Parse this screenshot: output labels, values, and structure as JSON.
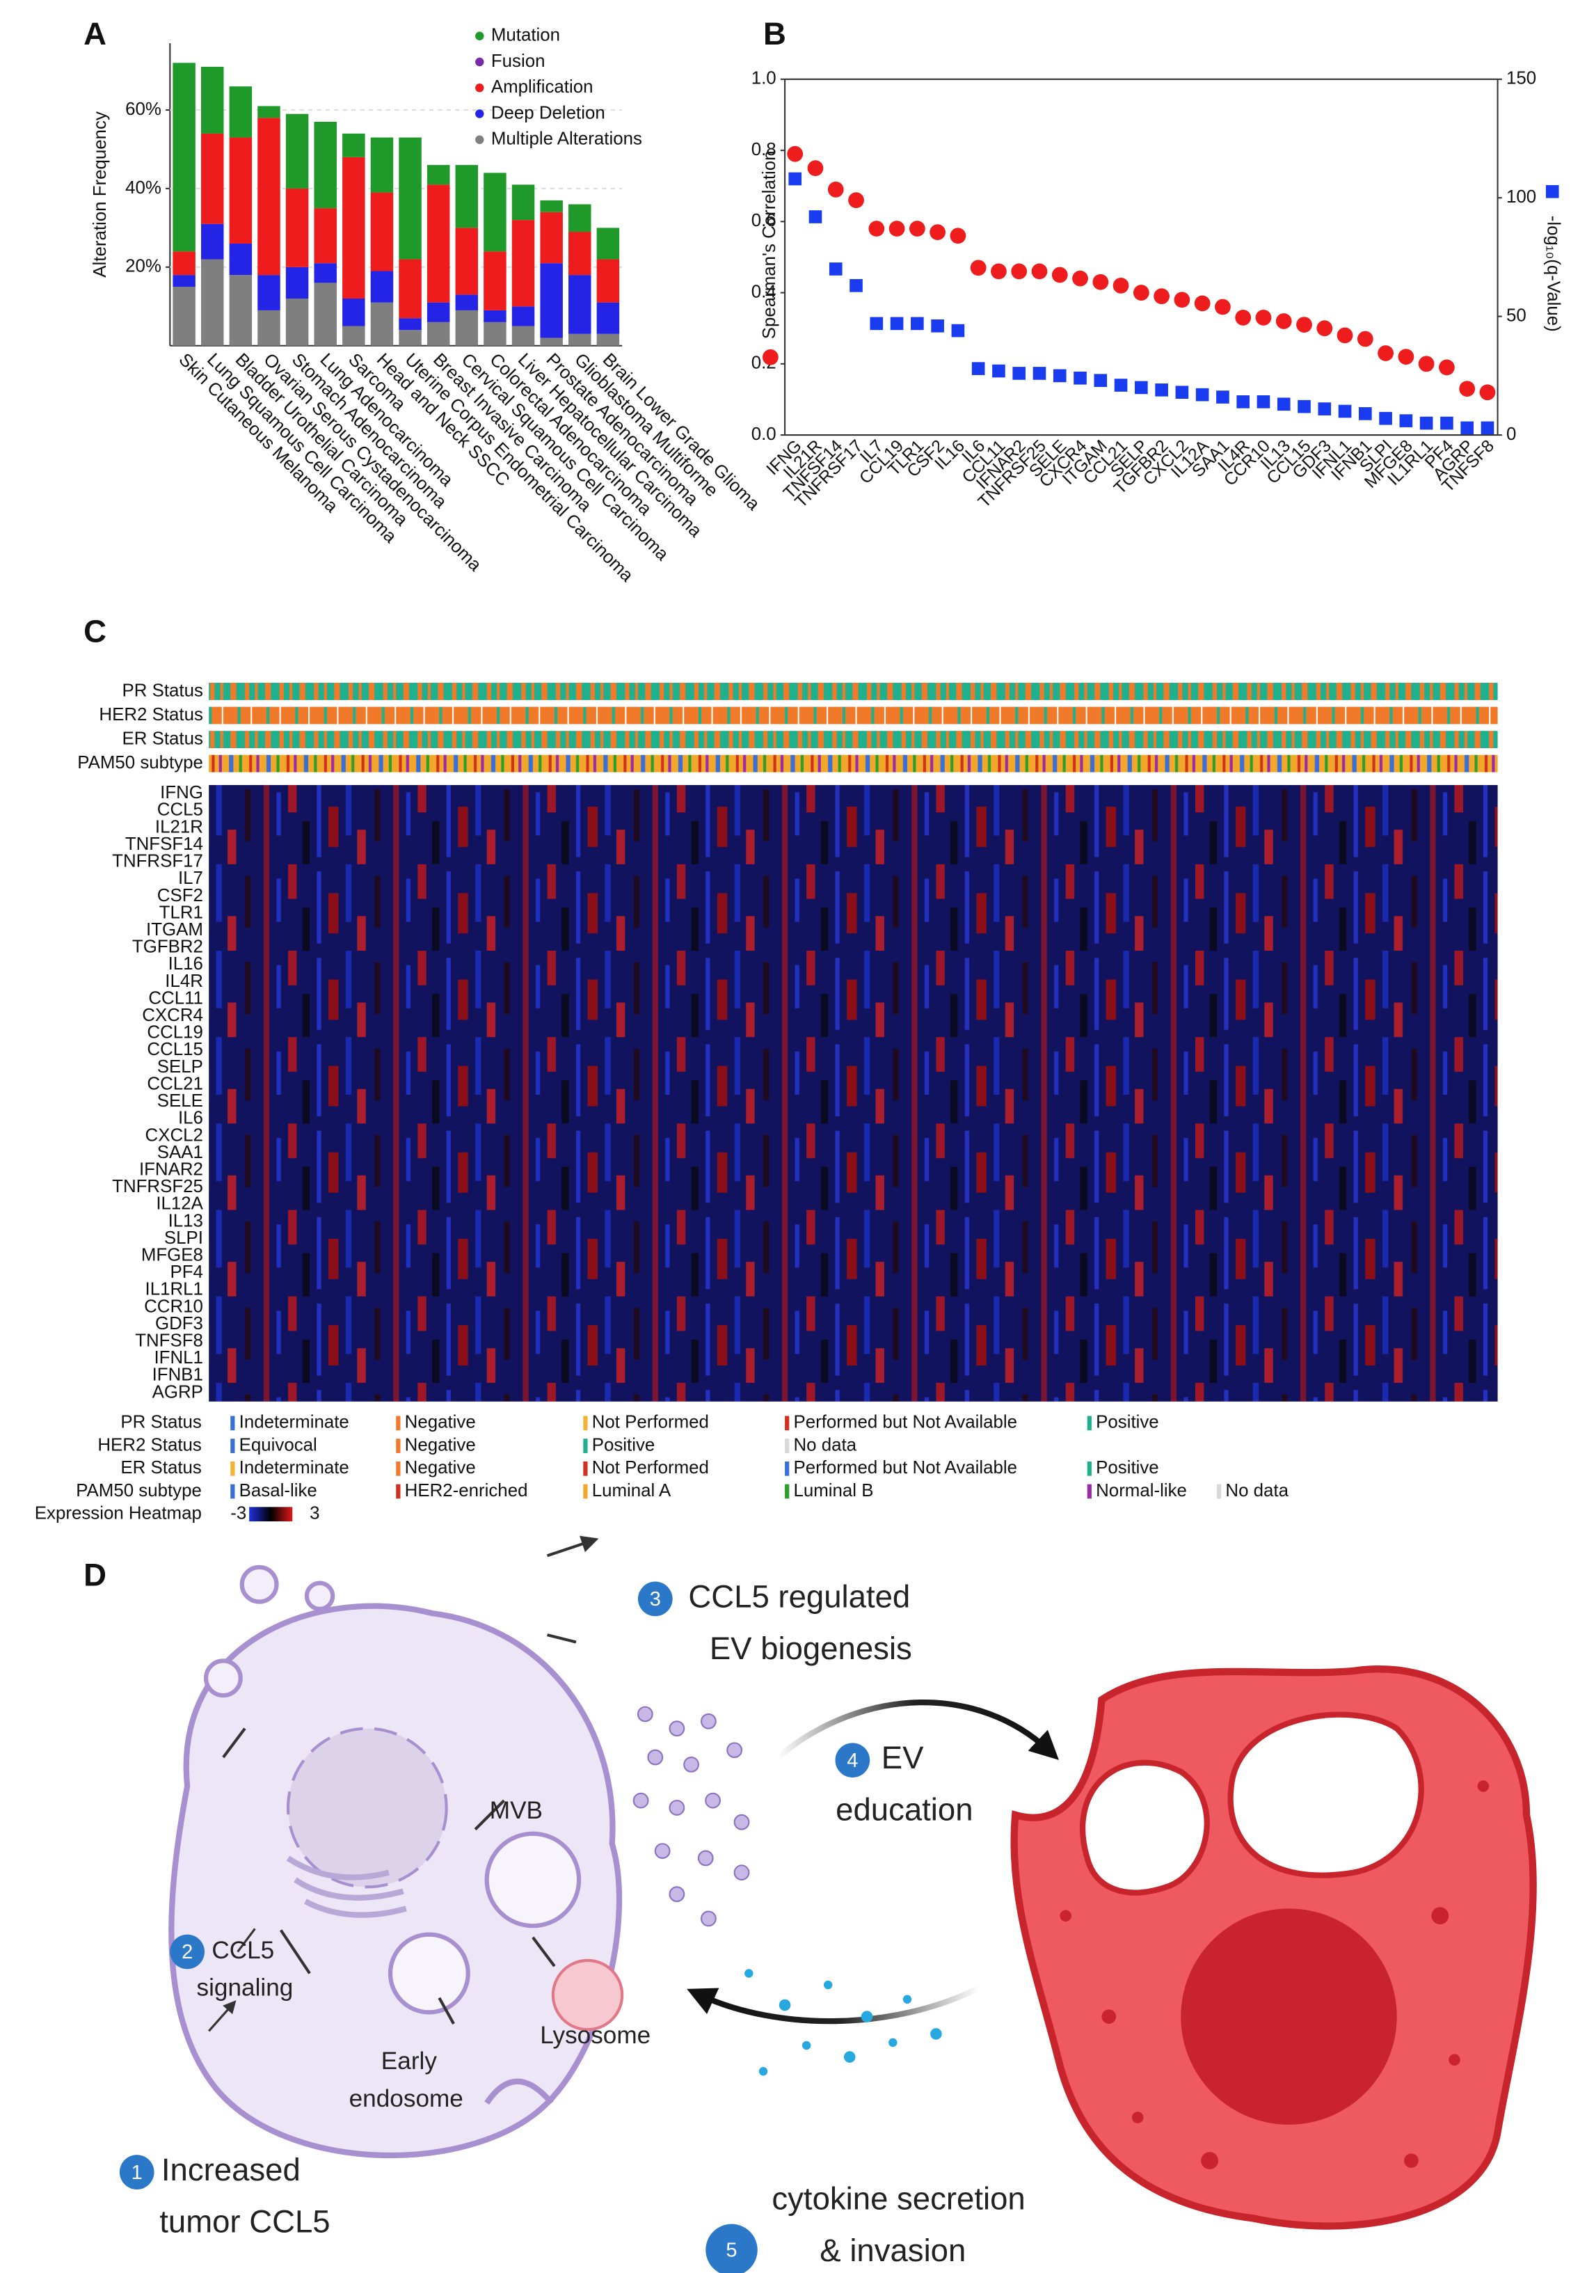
{
  "panel_labels": [
    "A",
    "B",
    "C",
    "D"
  ],
  "chart_data": [
    {
      "type": "stacked_bar",
      "y_label": "Alteration Frequency",
      "categories": [
        "Skin Cutaneous Melanoma",
        "Lung Squamous Cell Carcinoma",
        "Bladder Urothelial Carcinoma",
        "Ovarian Serous Cystadenocarcinoma",
        "Stomach Adenocarcinoma",
        "Lung Adenocarcinoma",
        "Sarcoma",
        "Head and Neck SSCC",
        "Uterine Corpus Endometrial Carcinoma",
        "Breast Invasive Carcinoma",
        "Cervical Squamous Cell Carcinoma",
        "Colorectal Adenocarcinoma",
        "Liver Hepatocellular Carcinoma",
        "Prostate Adenocarcinoma",
        "Glioblastoma Multiforme",
        "Brain Lower Grade Glioma"
      ],
      "series": [
        {
          "name": "Mutation",
          "color": "#1f9a2a",
          "values": [
            48,
            17,
            13,
            3,
            19,
            22,
            6,
            14,
            31,
            5,
            16,
            20,
            9,
            3,
            7,
            8
          ]
        },
        {
          "name": "Fusion",
          "color": "#7a2aa8",
          "values": [
            0,
            0,
            0,
            0,
            0,
            0,
            0,
            0,
            0,
            0,
            0,
            0,
            0,
            0,
            0,
            0
          ]
        },
        {
          "name": "Amplification",
          "color": "#ee1c1c",
          "values": [
            6,
            23,
            27,
            40,
            20,
            14,
            36,
            20,
            15,
            30,
            17,
            15,
            22,
            13,
            11,
            11
          ]
        },
        {
          "name": "Deep Deletion",
          "color": "#2424e6",
          "values": [
            3,
            9,
            8,
            9,
            8,
            5,
            7,
            8,
            3,
            5,
            4,
            3,
            5,
            19,
            15,
            8
          ]
        },
        {
          "name": "Multiple Alterations",
          "color": "#7f7f7f",
          "values": [
            15,
            22,
            18,
            9,
            12,
            16,
            5,
            11,
            4,
            6,
            9,
            6,
            5,
            2,
            3,
            3
          ]
        }
      ],
      "ylim": [
        0,
        77
      ],
      "yticks": [
        {
          "value": 20,
          "label": "20%"
        },
        {
          "value": 40,
          "label": "40%"
        },
        {
          "value": 60,
          "label": "60%"
        }
      ],
      "grid": true,
      "legend": "top-right"
    },
    {
      "type": "scatter",
      "y_label": "Spearman's Correlation",
      "y2_label": "-log₁₀(q-Value)",
      "categories": [
        "IFNG",
        "IL21R",
        "TNFSF14",
        "TNFRSF17",
        "IL7",
        "CCL19",
        "TLR1",
        "CSF2",
        "IL16",
        "IL6",
        "CCL11",
        "IFNAR2",
        "TNFRSF25",
        "SELE",
        "CXCR4",
        "ITGAM",
        "CCL21",
        "SELP",
        "TGFBR2",
        "CXCL2",
        "IL12A",
        "SAA1",
        "IL4R",
        "CCR10",
        "IL13",
        "CCL15",
        "GDF3",
        "IFNL1",
        "IFNB1",
        "SLPI",
        "MFGE8",
        "IL1RL1",
        "PF4",
        "AGRP",
        "TNFSF8"
      ],
      "series": [
        {
          "name": "Spearman's Correlation",
          "color": "#ee1c1c",
          "marker": "circle",
          "values": [
            0.79,
            0.75,
            0.69,
            0.66,
            0.58,
            0.58,
            0.58,
            0.57,
            0.56,
            0.47,
            0.46,
            0.46,
            0.46,
            0.45,
            0.44,
            0.43,
            0.42,
            0.4,
            0.39,
            0.38,
            0.37,
            0.36,
            0.33,
            0.33,
            0.32,
            0.31,
            0.3,
            0.28,
            0.27,
            0.23,
            0.22,
            0.2,
            0.19,
            0.13,
            0.12
          ]
        },
        {
          "name": "-log₁₀(q-Value)",
          "color": "#1a3cf0",
          "marker": "square",
          "axis": "y2",
          "values": [
            108,
            92,
            70,
            63,
            47,
            47,
            47,
            46,
            44,
            28,
            27,
            26,
            26,
            25,
            24,
            23,
            21,
            20,
            19,
            18,
            17,
            16,
            14,
            14,
            13,
            12,
            11,
            10,
            9,
            7,
            6,
            5,
            5,
            3,
            3
          ]
        }
      ],
      "ylim": [
        0,
        1
      ],
      "yticks": [
        {
          "value": 0,
          "label": "0.0"
        },
        {
          "value": 0.2,
          "label": "0.2"
        },
        {
          "value": 0.4,
          "label": "0.4"
        },
        {
          "value": 0.6,
          "label": "0.6"
        },
        {
          "value": 0.8,
          "label": "0.8"
        },
        {
          "value": 1,
          "label": "1.0"
        }
      ],
      "y2lim": [
        0,
        150
      ],
      "y2ticks": [
        0,
        50,
        100,
        150
      ]
    }
  ],
  "panel_c": {
    "tracks": [
      "PR Status",
      "HER2 Status",
      "ER Status",
      "PAM50 subtype"
    ],
    "genes": [
      "IFNG",
      "CCL5",
      "IL21R",
      "TNFSF14",
      "TNFRSF17",
      "IL7",
      "CSF2",
      "TLR1",
      "ITGAM",
      "TGFBR2",
      "IL16",
      "IL4R",
      "CCL11",
      "CXCR4",
      "CCL19",
      "CCL15",
      "SELP",
      "CCL21",
      "SELE",
      "IL6",
      "CXCL2",
      "SAA1",
      "IFNAR2",
      "TNFRSF25",
      "IL12A",
      "IL13",
      "SLPI",
      "MFGE8",
      "PF4",
      "IL1RL1",
      "CCR10",
      "GDF3",
      "TNFSF8",
      "IFNL1",
      "IFNB1",
      "AGRP"
    ],
    "legend": [
      {
        "label": "PR Status",
        "items": [
          {
            "text": "Indeterminate",
            "color": "#3a6fd8"
          },
          {
            "text": "Negative",
            "color": "#f07a2a"
          },
          {
            "text": "Not Performed",
            "color": "#f2b233"
          },
          {
            "text": "Performed but Not Available",
            "color": "#d0311f"
          },
          {
            "text": "Positive",
            "color": "#1fb08e"
          }
        ]
      },
      {
        "label": "HER2 Status",
        "items": [
          {
            "text": "Equivocal",
            "color": "#3a6fd8"
          },
          {
            "text": "Negative",
            "color": "#f07a2a"
          },
          {
            "text": "Positive",
            "color": "#1fb08e"
          },
          {
            "text": "No data",
            "color": "#d8d8d8"
          }
        ]
      },
      {
        "label": "ER Status",
        "items": [
          {
            "text": "Indeterminate",
            "color": "#f2b233"
          },
          {
            "text": "Negative",
            "color": "#f07a2a"
          },
          {
            "text": "Not Performed",
            "color": "#d0311f"
          },
          {
            "text": "Performed but Not Available",
            "color": "#3a6fd8"
          },
          {
            "text": "Positive",
            "color": "#1fb08e"
          }
        ]
      },
      {
        "label": "PAM50 subtype",
        "items": [
          {
            "text": "Basal-like",
            "color": "#3a6fd8"
          },
          {
            "text": "HER2-enriched",
            "color": "#d0311f"
          },
          {
            "text": "Luminal A",
            "color": "#f2a72a"
          },
          {
            "text": "Luminal B",
            "color": "#2aa02a"
          },
          {
            "text": "Normal-like",
            "color": "#9a2aa8"
          },
          {
            "text": "No data",
            "color": "#d8d8d8"
          }
        ]
      }
    ],
    "heatmap_legend": {
      "label": "Expression Heatmap",
      "low": "-3",
      "high": "3"
    }
  },
  "panel_d": {
    "steps": [
      {
        "number": "1",
        "text": [
          "Increased",
          "tumor CCL5"
        ]
      },
      {
        "number": "2",
        "text": [
          "CCL5",
          "signaling"
        ]
      },
      {
        "number": "3",
        "text": [
          "CCL5 regulated",
          "EV biogenesis"
        ]
      },
      {
        "number": "4",
        "text": [
          "EV",
          "education"
        ]
      },
      {
        "number": "5",
        "text": [
          "cytokine secretion",
          "& invasion"
        ]
      }
    ],
    "labels": {
      "mvb": "MVB",
      "lysosome": "Lysosome",
      "endosome": [
        "Early",
        "endosome"
      ]
    }
  }
}
